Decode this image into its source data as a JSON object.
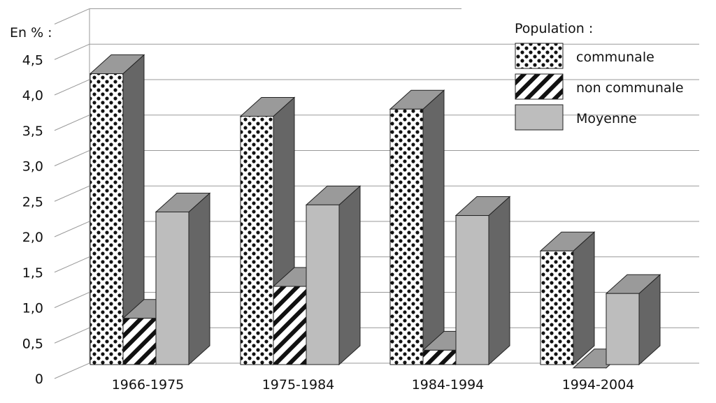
{
  "chart_data": {
    "type": "bar",
    "unit_label": "En % :",
    "categories": [
      "1966-1975",
      "1975-1984",
      "1984-1994",
      "1994-2004"
    ],
    "series": [
      {
        "name": "communale",
        "values": [
          4.3,
          3.7,
          3.8,
          1.8
        ],
        "pattern": "dots"
      },
      {
        "name": "non communale",
        "values": [
          0.85,
          1.3,
          0.4,
          0.15
        ],
        "pattern": "stripes"
      },
      {
        "name": "Moyenne",
        "values": [
          2.35,
          2.45,
          2.3,
          1.2
        ],
        "pattern": "solid",
        "color": "#bdbdbd"
      }
    ],
    "y_ticks": [
      "0",
      "0,5",
      "1,0",
      "1,5",
      "2,0",
      "2,5",
      "3,0",
      "3,5",
      "4,0",
      "4,5"
    ],
    "ylim": [
      0,
      4.5
    ],
    "grid": true,
    "legend": {
      "title": "Population :",
      "placement": "top-right"
    },
    "style": "3d"
  }
}
